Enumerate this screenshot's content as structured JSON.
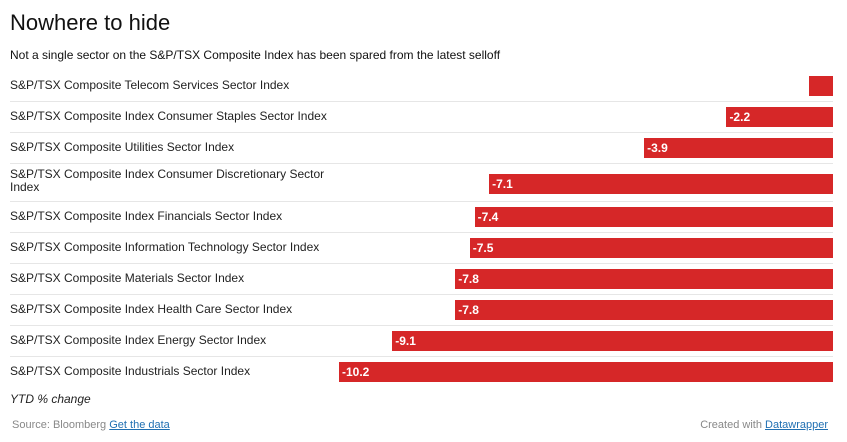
{
  "chart_data": {
    "type": "bar",
    "orientation": "horizontal",
    "title": "Nowhere to hide",
    "subtitle": "Not a single sector on the S&P/TSX Composite Index has been spared from the latest selloff",
    "categories": [
      "S&P/TSX Composite Telecom Services Sector Index",
      "S&P/TSX Composite Index Consumer Staples Sector Index",
      "S&P/TSX Composite Utilities Sector Index",
      "S&P/TSX Composite Index Consumer Discretionary Sector Index",
      "S&P/TSX Composite Index Financials Sector Index",
      "S&P/TSX Composite Information Technology Sector Index",
      "S&P/TSX Composite Materials Sector Index",
      "S&P/TSX Composite Index Health Care Sector Index",
      "S&P/TSX Composite Index Energy Sector Index",
      "S&P/TSX Composite Industrials Sector Index"
    ],
    "values": [
      -0.5,
      -2.2,
      -3.9,
      -7.1,
      -7.4,
      -7.5,
      -7.8,
      -7.8,
      -9.1,
      -10.2
    ],
    "value_labels": [
      "",
      "-2.2",
      "-3.9",
      "-7.1",
      "-7.4",
      "-7.5",
      "-7.8",
      "-7.8",
      "-9.1",
      "-10.2"
    ],
    "color": "#d62728",
    "xlim": [
      -10.2,
      0
    ],
    "grid": false,
    "note": "YTD % change"
  },
  "footer": {
    "source_label": "Source: Bloomberg",
    "data_link": "Get the data",
    "created_label": "Created with",
    "tool_link": "Datawrapper"
  }
}
